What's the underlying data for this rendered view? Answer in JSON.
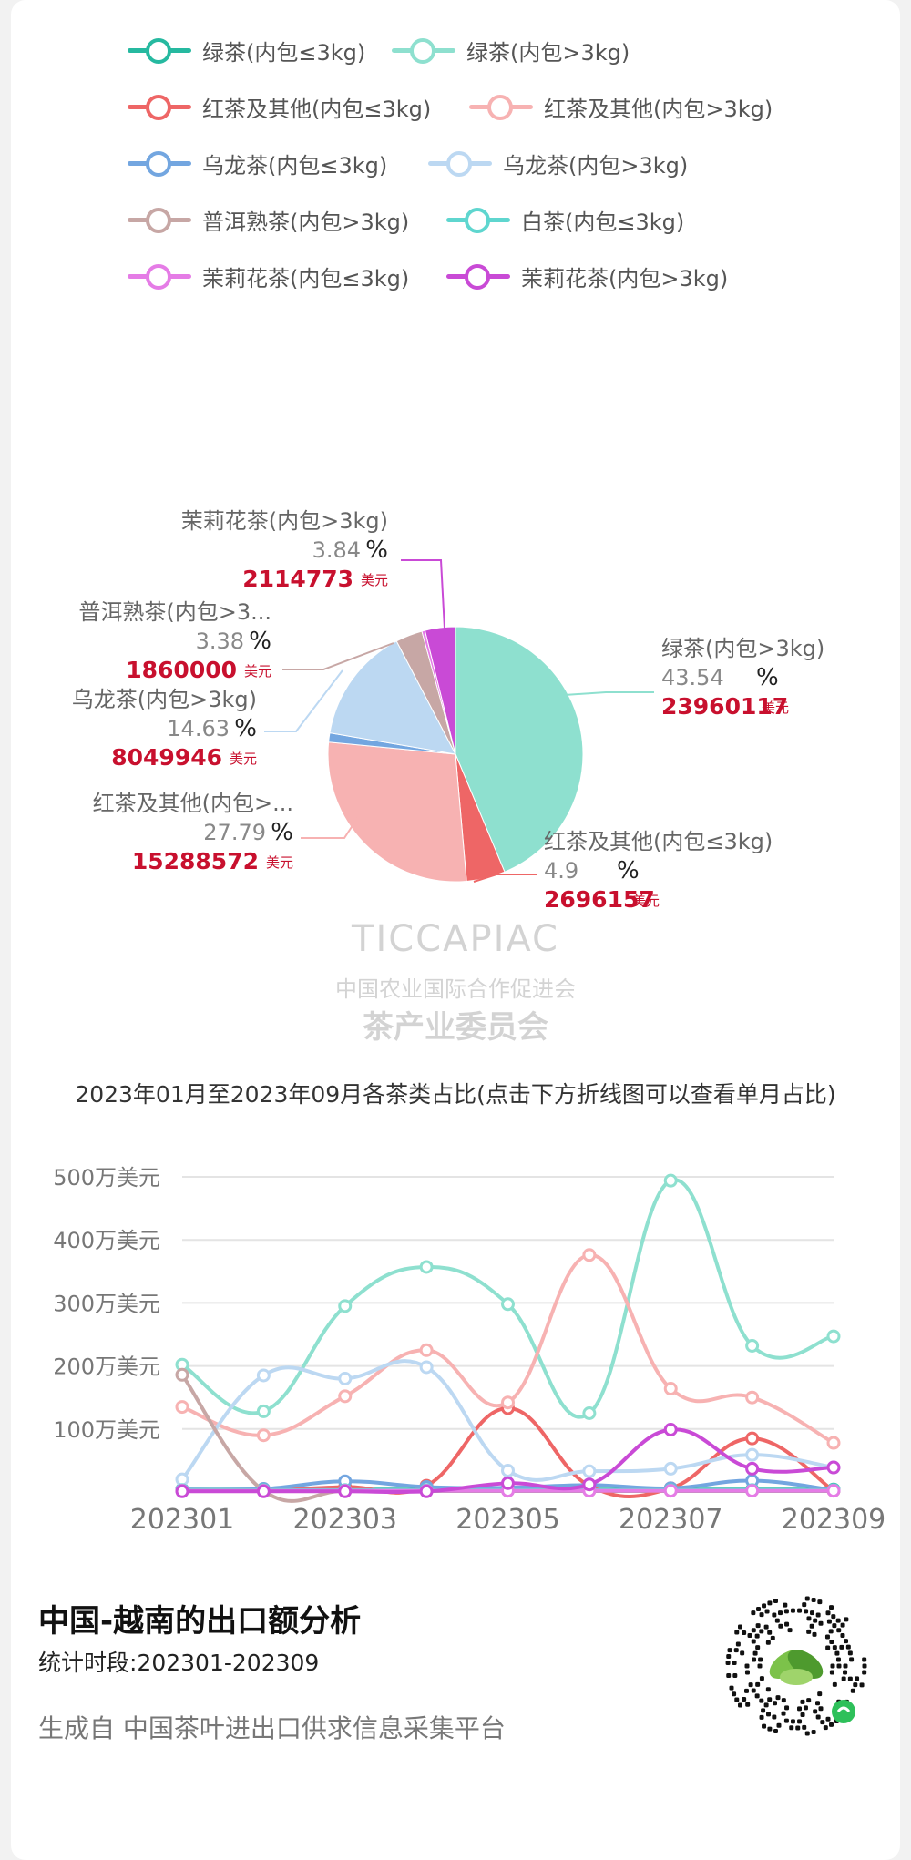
{
  "legend": [
    {
      "name": "绿茶(内包≤3kg)",
      "color": "#26b9a0"
    },
    {
      "name": "绿茶(内包>3kg)",
      "color": "#8ee0cf"
    },
    {
      "name": "红茶及其他(内包≤3kg)",
      "color": "#ee6666"
    },
    {
      "name": "红茶及其他(内包>3kg)",
      "color": "#f7b2b2"
    },
    {
      "name": "乌龙茶(内包≤3kg)",
      "color": "#73a6e0"
    },
    {
      "name": "乌龙茶(内包>3kg)",
      "color": "#bcd8f2"
    },
    {
      "name": "普洱熟茶(内包>3kg)",
      "color": "#c7a7a5"
    },
    {
      "name": "白茶(内包≤3kg)",
      "color": "#5fd6cf"
    },
    {
      "name": "茉莉花茶(内包≤3kg)",
      "color": "#e57ce6"
    },
    {
      "name": "茉莉花茶(内包>3kg)",
      "color": "#c94ad6"
    }
  ],
  "watermark": {
    "brand": "TICCAPIAC",
    "line1": "中国农业国际合作促进会",
    "line2": "茶产业委员会"
  },
  "chart_data": [
    {
      "type": "pie",
      "unit": "美元",
      "slices": [
        {
          "name": "绿茶(内包>3kg)",
          "percent": "43.54",
          "value": 23960117,
          "color": "#8ee0cf"
        },
        {
          "name": "红茶及其他(内包≤3kg)",
          "percent": "4.9",
          "value": 2696157,
          "color": "#ee6666"
        },
        {
          "name": "红茶及其他(内包>...",
          "percent": "27.79",
          "value": 15288572,
          "color": "#f7b2b2"
        },
        {
          "name": "乌龙茶(内包≤3kg)",
          "percent": "1.15",
          "value": 633000,
          "color": "#73a6e0",
          "hidden_label": true
        },
        {
          "name": "乌龙茶(内包>3kg)",
          "percent": "14.63",
          "value": 8049946,
          "color": "#bcd8f2"
        },
        {
          "name": "普洱熟茶(内包>3...",
          "percent": "3.38",
          "value": 1860000,
          "color": "#c7a7a5"
        },
        {
          "name": "茉莉花茶(内包≤3kg)",
          "percent": "0.4",
          "value": 220000,
          "color": "#e57ce6",
          "hidden_label": true
        },
        {
          "name": "茉莉花茶(内包>3kg)",
          "percent": "3.84",
          "value": 2114773,
          "color": "#c94ad6"
        }
      ]
    },
    {
      "type": "line",
      "title": "2023年01月至2023年09月各茶类占比(点击下方折线图可以查看单月占比)",
      "x": [
        "202301",
        "202302",
        "202303",
        "202304",
        "202305",
        "202306",
        "202307",
        "202308",
        "202309"
      ],
      "x_tick_labels": [
        "202301",
        "202303",
        "202305",
        "202307",
        "202309"
      ],
      "y_ticks": [
        "100万美元",
        "200万美元",
        "300万美元",
        "400万美元",
        "500万美元"
      ],
      "ylim": [
        0,
        5000000
      ],
      "series": [
        {
          "name": "绿茶(内包≤3kg)",
          "color": "#26b9a0",
          "values": [
            40000,
            40000,
            40000,
            40000,
            40000,
            40000,
            40000,
            40000,
            40000
          ]
        },
        {
          "name": "绿茶(内包>3kg)",
          "color": "#8ee0cf",
          "values": [
            2020000,
            1280000,
            2950000,
            3570000,
            2980000,
            1250000,
            4940000,
            2320000,
            2470000
          ]
        },
        {
          "name": "红茶及其他(内包≤3kg)",
          "color": "#ee6666",
          "values": [
            30000,
            30000,
            80000,
            100000,
            1330000,
            100000,
            60000,
            850000,
            20000
          ]
        },
        {
          "name": "红茶及其他(内包>3kg)",
          "color": "#f7b2b2",
          "values": [
            1350000,
            900000,
            1520000,
            2250000,
            1420000,
            3760000,
            1640000,
            1500000,
            780000
          ]
        },
        {
          "name": "乌龙茶(内包≤3kg)",
          "color": "#73a6e0",
          "values": [
            40000,
            50000,
            170000,
            80000,
            70000,
            110000,
            60000,
            180000,
            30000
          ]
        },
        {
          "name": "乌龙茶(内包>3kg)",
          "color": "#bcd8f2",
          "values": [
            200000,
            1850000,
            1800000,
            1980000,
            340000,
            330000,
            370000,
            590000,
            390000
          ]
        },
        {
          "name": "普洱熟茶(内包>3kg)",
          "color": "#c7a7a5",
          "values": [
            1860000,
            20000,
            20000,
            20000,
            20000,
            20000,
            20000,
            20000,
            20000
          ]
        },
        {
          "name": "白茶(内包≤3kg)",
          "color": "#5fd6cf",
          "values": [
            30000,
            30000,
            30000,
            30000,
            30000,
            30000,
            30000,
            30000,
            30000
          ]
        },
        {
          "name": "茉莉花茶(内包≤3kg)",
          "color": "#e57ce6",
          "values": [
            20000,
            20000,
            20000,
            20000,
            20000,
            20000,
            20000,
            20000,
            20000
          ]
        },
        {
          "name": "茉莉花茶(内包>3kg)",
          "color": "#c94ad6",
          "values": [
            10000,
            10000,
            10000,
            10000,
            140000,
            120000,
            990000,
            370000,
            390000
          ]
        }
      ]
    }
  ],
  "footer": {
    "title": "中国-越南的出口额分析",
    "period": "统计时段:202301-202309",
    "source": "生成自  中国茶叶进出口供求信息采集平台"
  }
}
